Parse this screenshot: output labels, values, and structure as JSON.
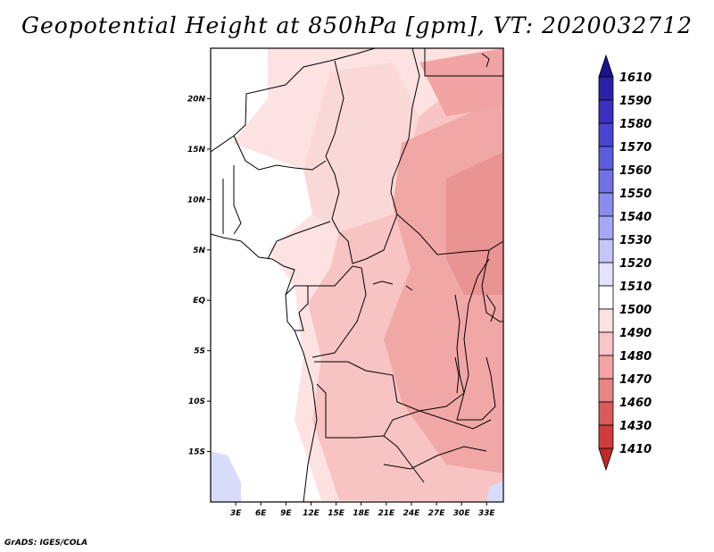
{
  "title": "Geopotential Height at 850hPa [gpm], VT: 2020032712",
  "credit": "GrADS: IGES/COLA",
  "map": {
    "region": "Central Africa",
    "lon_range": [
      0,
      35
    ],
    "lat_range": [
      -20,
      25
    ],
    "lat_ticks": [
      {
        "value": 20,
        "label": "20N"
      },
      {
        "value": 15,
        "label": "15N"
      },
      {
        "value": 10,
        "label": "10N"
      },
      {
        "value": 5,
        "label": "5N"
      },
      {
        "value": 0,
        "label": "EQ"
      },
      {
        "value": -5,
        "label": "5S"
      },
      {
        "value": -10,
        "label": "10S"
      },
      {
        "value": -15,
        "label": "15S"
      }
    ],
    "lon_ticks": [
      {
        "value": 3,
        "label": "3E"
      },
      {
        "value": 6,
        "label": "6E"
      },
      {
        "value": 9,
        "label": "9E"
      },
      {
        "value": 12,
        "label": "12E"
      },
      {
        "value": 15,
        "label": "15E"
      },
      {
        "value": 18,
        "label": "18E"
      },
      {
        "value": 21,
        "label": "21E"
      },
      {
        "value": 24,
        "label": "24E"
      },
      {
        "value": 27,
        "label": "27E"
      },
      {
        "value": 30,
        "label": "30E"
      },
      {
        "value": 33,
        "label": "33E"
      }
    ]
  },
  "colorbar": {
    "labels": [
      "1610",
      "1590",
      "1580",
      "1570",
      "1560",
      "1550",
      "1540",
      "1530",
      "1520",
      "1510",
      "1500",
      "1490",
      "1480",
      "1470",
      "1460",
      "1430",
      "1410"
    ],
    "colors": [
      "#1a148c",
      "#2c22aa",
      "#3a31be",
      "#4a45d0",
      "#5c5cde",
      "#7171e8",
      "#8a8cf0",
      "#a4a8f6",
      "#c4c6fa",
      "#e2e3fc",
      "#ffffff",
      "#fde2e2",
      "#f8c6c6",
      "#f3a3a3",
      "#e98484",
      "#dc5a5a",
      "#d03c3c",
      "#c02828"
    ]
  }
}
